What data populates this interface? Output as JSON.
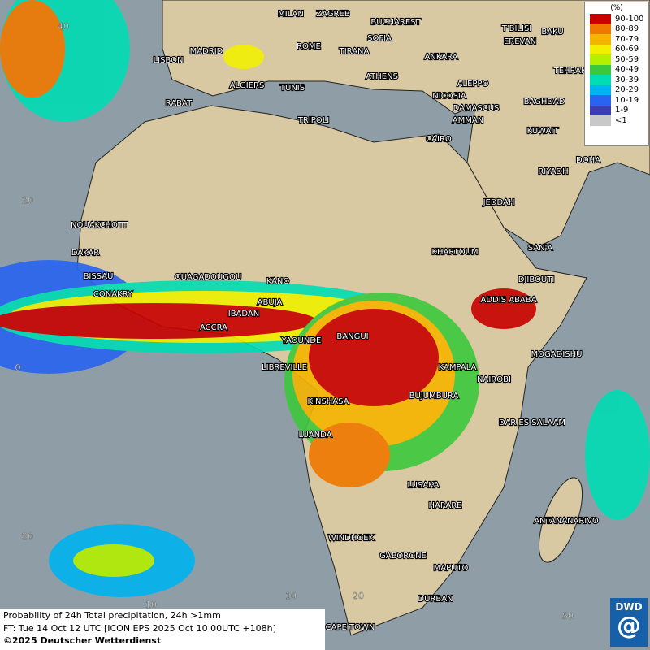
{
  "map": {
    "cities": [
      "MILAN",
      "ZAGREB",
      "BUCHAREST",
      "T'BILISI",
      "BAKU",
      "SOFIA",
      "ROME",
      "TIRANA",
      "EREVAN",
      "MADRID",
      "LISBON",
      "ANKARA",
      "TEHRAN",
      "ALGIERS",
      "TUNIS",
      "ATHENS",
      "ALEPPO",
      "NICOSIA",
      "BAGHDAD",
      "RABAT",
      "TRIPOLI",
      "DAMASCUS",
      "AMMAN",
      "KUWAIT",
      "CAIRO",
      "DOHA",
      "RIYADH",
      "JEDDAH",
      "NOUAKCHOTT",
      "DAKAR",
      "KHARTOUM",
      "SAN'A",
      "BISSAU",
      "OUAGADOUGOU",
      "KANO",
      "DJIBOUTI",
      "CONAKRY",
      "ABUJA",
      "ADDIS ABABA",
      "IBADAN",
      "ACCRA",
      "BANGUI",
      "YAOUNDE",
      "MOGADISHU",
      "LIBREVILLE",
      "KAMPALA",
      "NAIROBI",
      "BUJUMBURA",
      "KINSHASA",
      "DAR ES SALAAM",
      "LUANDA",
      "LUSAKA",
      "HARARE",
      "ANTANANARIVO",
      "WINDHOEK",
      "GABORONE",
      "MAPUTO",
      "DURBAN",
      "CAPE TOWN"
    ],
    "grid_labels": [
      "40",
      "20",
      "0",
      "20",
      "10",
      "10",
      "20",
      "50"
    ],
    "legend": {
      "title": "(%)",
      "items": [
        {
          "label": "90-100",
          "color": "#c80000"
        },
        {
          "label": "80-89",
          "color": "#f07800"
        },
        {
          "label": "70-79",
          "color": "#f5b400"
        },
        {
          "label": "60-69",
          "color": "#f0f000"
        },
        {
          "label": "50-59",
          "color": "#b4f000"
        },
        {
          "label": "40-49",
          "color": "#3cc83c"
        },
        {
          "label": "30-39",
          "color": "#00dcb4"
        },
        {
          "label": "20-29",
          "color": "#00b4f0"
        },
        {
          "label": "10-19",
          "color": "#2864f0"
        },
        {
          "label": "1-9",
          "color": "#3c3cb4"
        },
        {
          "label": "<1",
          "color": "#c8c8c8"
        }
      ]
    },
    "caption": [
      "Probability of 24h Total precipitation, 24h >1mm",
      "FT: Tue 14 Oct 12 UTC [ICON EPS 2025 Oct 10 00UTC +108h]",
      "©2025 Deutscher Wetterdienst"
    ],
    "logo": "DWD"
  }
}
